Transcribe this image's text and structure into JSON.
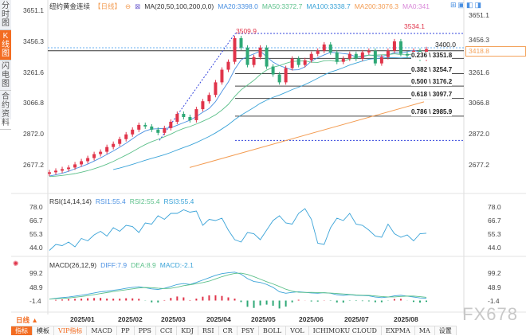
{
  "sidebar": {
    "items": [
      {
        "label": "分时图"
      },
      {
        "label": "K线图",
        "active": true
      },
      {
        "label": "闪电图"
      },
      {
        "label": "合约资料"
      }
    ]
  },
  "header": {
    "title": "纽约黄金连续",
    "period": "【日线】",
    "ma_label": "MA(20,50,100,200,0,0)",
    "ma20": "MA20:3398.0",
    "ma50": "MA50:3372.7",
    "ma100": "MA100:3338.7",
    "ma200": "MA200:3076.3",
    "ma0": "MA0:341"
  },
  "colors": {
    "up": "#e0344a",
    "down": "#2ea876",
    "ma20": "#4a90e2",
    "ma50": "#5cc08a",
    "ma100": "#3aa3d8",
    "ma200": "#f39c52",
    "ma0": "#d98ad9",
    "accent": "#f36c21"
  },
  "price_axis": [
    "3651.1",
    "3456.3",
    "3261.6",
    "3066.8",
    "2872.0",
    "2677.2"
  ],
  "current_price": "3418.8",
  "level_3400": "3400.0",
  "annotations": {
    "high1": "3509.9",
    "high2": "3534.1"
  },
  "fib": [
    {
      "label": "0.236 \\ 3351.8",
      "v": 3351.8
    },
    {
      "label": "0.382 \\ 3254.7",
      "v": 3254.7
    },
    {
      "label": "0.500 \\ 3176.2",
      "v": 3176.2
    },
    {
      "label": "0.618 \\ 3097.7",
      "v": 3097.7
    },
    {
      "label": "0.786 \\ 2985.9",
      "v": 2985.9
    }
  ],
  "rsi": {
    "label": "RSI(14,14,14)",
    "rsi1": "RSI1:55.4",
    "rsi2": "RSI2:55.4",
    "rsi3": "RSI3:55.4",
    "axis": [
      "78.0",
      "66.7",
      "55.3",
      "44.0"
    ]
  },
  "macd": {
    "label": "MACD(26,12,9)",
    "diff": "DIFF:7.9",
    "dea": "DEA:8.9",
    "macd": "MACD:-2.1",
    "axis": [
      "99.2",
      "48.9",
      "-1.4"
    ]
  },
  "dates": [
    "2025/01",
    "2025/02",
    "2025/03",
    "2025/04",
    "2025/05",
    "2025/06",
    "2025/07",
    "2025/08"
  ],
  "period_select": "日线 ▲",
  "toolbar": [
    "指标",
    "模板",
    "VIP指标",
    "MACD",
    "PP",
    "PPS",
    "CCI",
    "KDJ",
    "RSI",
    "CR",
    "PSY",
    "BOLL",
    "VOL",
    "ICHIMOKU CLOUD",
    "EXPMA",
    "MA",
    "设置"
  ],
  "watermark": "FX678",
  "chart_data": {
    "type": "candlestick",
    "closes": [
      2630,
      2640,
      2650,
      2660,
      2680,
      2700,
      2720,
      2745,
      2760,
      2790,
      2810,
      2840,
      2870,
      2900,
      2930,
      2920,
      2900,
      2880,
      2910,
      2950,
      3000,
      2980,
      2960,
      3030,
      3080,
      3120,
      3200,
      3280,
      3330,
      3480,
      3420,
      3310,
      3360,
      3420,
      3300,
      3250,
      3200,
      3290,
      3350,
      3310,
      3340,
      3380,
      3400,
      3440,
      3390,
      3330,
      3350,
      3380,
      3350,
      3390,
      3400,
      3320,
      3360,
      3400,
      3460,
      3380,
      3370,
      3400,
      3350,
      3410
    ],
    "rsi": [
      41,
      46,
      45,
      48,
      44,
      51,
      49,
      54,
      57,
      53,
      60,
      57,
      62,
      61,
      56,
      64,
      63,
      70,
      67,
      72,
      72,
      75,
      73,
      74,
      62,
      67,
      66,
      68,
      58,
      50,
      48,
      56,
      55,
      50,
      58,
      66,
      70,
      64,
      63,
      72,
      76,
      67,
      47,
      46,
      60,
      68,
      66,
      72,
      63,
      62,
      58,
      53,
      52,
      63,
      55,
      52,
      54,
      49,
      55,
      55.4
    ],
    "macd_diff": [
      5,
      8,
      10,
      12,
      15,
      18,
      22,
      26,
      30,
      32,
      35,
      38,
      42,
      45,
      47,
      44,
      40,
      38,
      42,
      48,
      55,
      58,
      55,
      62,
      70,
      78,
      86,
      92,
      95,
      97,
      90,
      75,
      65,
      62,
      55,
      45,
      30,
      25,
      28,
      30,
      28,
      26,
      25,
      27,
      25,
      20,
      18,
      20,
      18,
      17,
      16,
      12,
      10,
      12,
      16,
      18,
      15,
      12,
      9,
      7.9
    ],
    "ylim": [
      2677.2,
      3651.1
    ]
  }
}
